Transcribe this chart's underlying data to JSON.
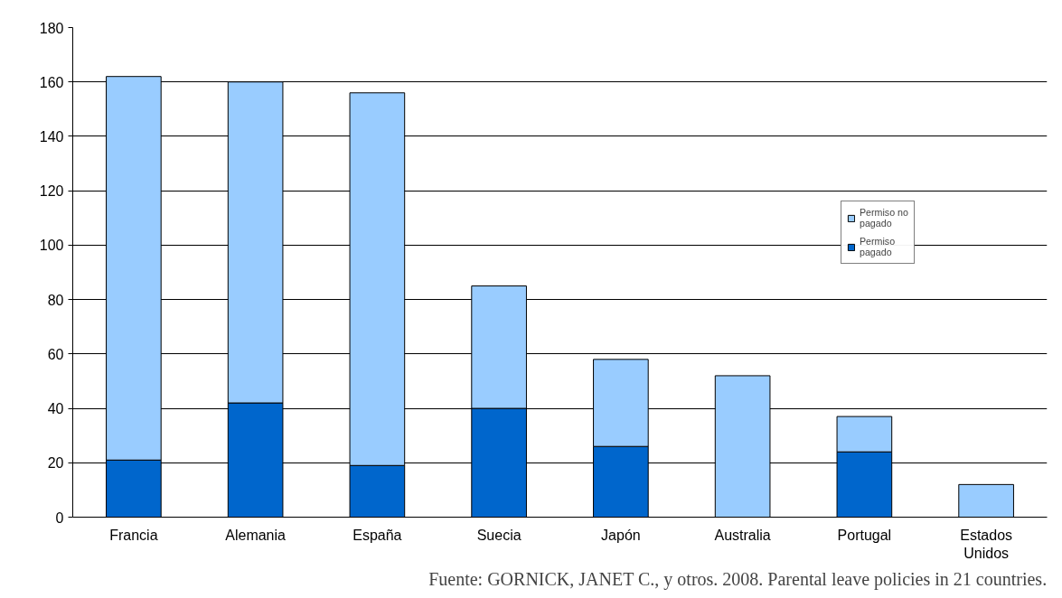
{
  "chart_data": {
    "type": "bar",
    "stacked": true,
    "categories": [
      "Francia",
      "Alemania",
      "España",
      "Suecia",
      "Japón",
      "Australia",
      "Portugal",
      "Estados Unidos"
    ],
    "series": [
      {
        "name": "Permiso pagado",
        "color": "#0066cc",
        "values": [
          21,
          42,
          19,
          40,
          26,
          0,
          24,
          0
        ]
      },
      {
        "name": "Permiso no pagado",
        "color": "#99ccff",
        "values": [
          141,
          118,
          137,
          45,
          32,
          52,
          13,
          12
        ]
      }
    ],
    "ylim": [
      0,
      180
    ],
    "yticks": [
      0,
      20,
      40,
      60,
      80,
      100,
      120,
      140,
      160,
      180
    ],
    "grid": "y",
    "legend": "right",
    "annotations": [
      "Fuente: GORNICK, JANET C., y otros. 2008. Parental leave policies in 21 countries."
    ]
  }
}
